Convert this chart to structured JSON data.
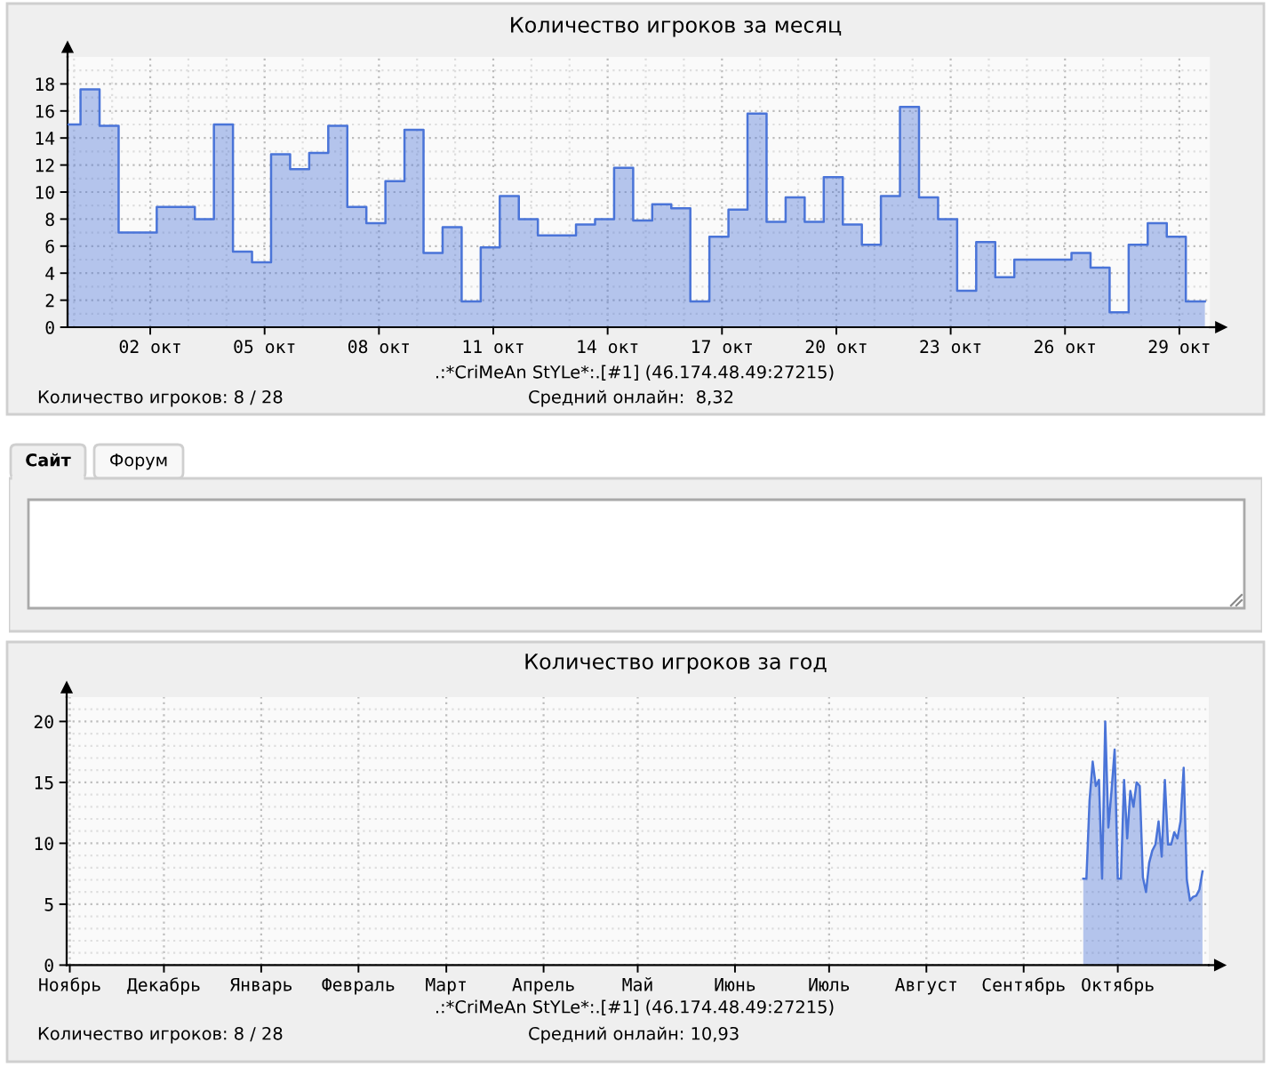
{
  "chart_data": [
    {
      "type": "area",
      "title": "Количество игроков за месяц",
      "x": [
        -0.17,
        0.17,
        0.17,
        0.67,
        0.67,
        1.17,
        1.17,
        2.17,
        2.17,
        3.17,
        3.17,
        3.67,
        3.67,
        4.17,
        4.17,
        4.67,
        4.67,
        5.17,
        5.17,
        5.67,
        5.67,
        6.17,
        6.17,
        6.67,
        6.67,
        7.17,
        7.17,
        7.67,
        7.67,
        8.17,
        8.17,
        8.67,
        8.67,
        9.17,
        9.17,
        9.67,
        9.67,
        10.17,
        10.17,
        10.67,
        10.67,
        11.17,
        11.17,
        11.67,
        11.67,
        12.17,
        12.17,
        13.17,
        13.17,
        13.67,
        13.67,
        14.17,
        14.17,
        14.67,
        14.67,
        15.17,
        15.17,
        15.67,
        15.67,
        16.17,
        16.17,
        16.67,
        16.67,
        17.17,
        17.17,
        17.67,
        17.67,
        18.17,
        18.17,
        18.67,
        18.67,
        19.17,
        19.17,
        19.67,
        19.67,
        20.17,
        20.17,
        20.67,
        20.67,
        21.17,
        21.17,
        21.67,
        21.67,
        22.17,
        22.17,
        22.67,
        22.67,
        23.17,
        23.17,
        23.67,
        23.67,
        24.17,
        24.17,
        24.67,
        24.67,
        26.17,
        26.17,
        26.67,
        26.67,
        27.17,
        27.17,
        27.67,
        27.67,
        28.17,
        28.17,
        28.67,
        28.67,
        29.17,
        29.17,
        29.67
      ],
      "series": [
        {
          "color": "#4a74d8",
          "values": [
            15.0,
            15.0,
            17.6,
            17.6,
            14.9,
            14.9,
            7.0,
            7.0,
            8.9,
            8.9,
            8.0,
            8.0,
            15.0,
            15.0,
            5.6,
            5.6,
            4.8,
            4.8,
            12.8,
            12.8,
            11.7,
            11.7,
            12.9,
            12.9,
            14.9,
            14.9,
            8.9,
            8.9,
            7.7,
            7.7,
            10.8,
            10.8,
            14.6,
            14.6,
            5.5,
            5.5,
            7.4,
            7.4,
            1.9,
            1.9,
            5.9,
            5.9,
            9.7,
            9.7,
            8.0,
            8.0,
            6.8,
            6.8,
            7.6,
            7.6,
            8.0,
            8.0,
            11.8,
            11.8,
            7.9,
            7.9,
            9.1,
            9.1,
            8.8,
            8.8,
            1.9,
            1.9,
            6.7,
            6.7,
            8.7,
            8.7,
            15.8,
            15.8,
            7.8,
            7.8,
            9.6,
            9.6,
            7.8,
            7.8,
            11.1,
            11.1,
            7.6,
            7.6,
            6.1,
            6.1,
            9.7,
            9.7,
            16.3,
            16.3,
            9.6,
            9.6,
            8.0,
            8.0,
            2.7,
            2.7,
            6.3,
            6.3,
            3.7,
            3.7,
            5.0,
            5.0,
            5.5,
            5.5,
            4.4,
            4.4,
            1.1,
            1.1,
            6.1,
            6.1,
            7.7,
            7.7,
            6.7,
            6.7,
            1.9,
            1.9
          ]
        }
      ],
      "xlim": [
        -0.17,
        29.8
      ],
      "ylim": [
        0,
        20
      ],
      "xticks": [
        {
          "value": 0,
          "label": null
        },
        {
          "value": 1,
          "label": null
        },
        {
          "value": 2,
          "label": "02 окт"
        },
        {
          "value": 3,
          "label": null
        },
        {
          "value": 4,
          "label": null
        },
        {
          "value": 5,
          "label": "05 окт"
        },
        {
          "value": 6,
          "label": null
        },
        {
          "value": 7,
          "label": null
        },
        {
          "value": 8,
          "label": "08 окт"
        },
        {
          "value": 9,
          "label": null
        },
        {
          "value": 10,
          "label": null
        },
        {
          "value": 11,
          "label": "11 окт"
        },
        {
          "value": 12,
          "label": null
        },
        {
          "value": 13,
          "label": null
        },
        {
          "value": 14,
          "label": "14 окт"
        },
        {
          "value": 15,
          "label": null
        },
        {
          "value": 16,
          "label": null
        },
        {
          "value": 17,
          "label": "17 окт"
        },
        {
          "value": 18,
          "label": null
        },
        {
          "value": 19,
          "label": null
        },
        {
          "value": 20,
          "label": "20 окт"
        },
        {
          "value": 21,
          "label": null
        },
        {
          "value": 22,
          "label": null
        },
        {
          "value": 23,
          "label": "23 окт"
        },
        {
          "value": 24,
          "label": null
        },
        {
          "value": 25,
          "label": null
        },
        {
          "value": 26,
          "label": "26 окт"
        },
        {
          "value": 27,
          "label": null
        },
        {
          "value": 28,
          "label": null
        },
        {
          "value": 29,
          "label": "29 окт"
        }
      ],
      "yticks": [
        0,
        {
          "value": 1,
          "label": null
        },
        2,
        {
          "value": 3,
          "label": null
        },
        4,
        {
          "value": 5,
          "label": null
        },
        6,
        {
          "value": 7,
          "label": null
        },
        8,
        {
          "value": 9,
          "label": null
        },
        10,
        {
          "value": 11,
          "label": null
        },
        12,
        {
          "value": 13,
          "label": null
        },
        14,
        {
          "value": 15,
          "label": null
        },
        16,
        {
          "value": 17,
          "label": null
        },
        18,
        {
          "value": 19,
          "label": null
        }
      ],
      "grid": true,
      "annotations": [
        ".:*CriMeAn StYLe*:.[#1] (46.174.48.49:27215)",
        "Количество игроков: 8 / 28",
        "Средний онлайн:  8,32"
      ]
    },
    {
      "type": "other",
      "annotations": [
        "Сайт",
        "Форум"
      ]
    },
    {
      "type": "area",
      "title": "Количество игроков за год",
      "categories": [
        null,
        "Ноябрь",
        null,
        null,
        null,
        null,
        null,
        null,
        null,
        null,
        null,
        null,
        null,
        null,
        null,
        null,
        null,
        null,
        null,
        null,
        null,
        null,
        null,
        null,
        null,
        null,
        null,
        null,
        null,
        null,
        null,
        "Декабрь",
        null,
        null,
        null,
        null,
        null,
        null,
        null,
        null,
        null,
        null,
        null,
        null,
        null,
        null,
        null,
        null,
        null,
        null,
        null,
        null,
        null,
        null,
        null,
        null,
        null,
        null,
        null,
        null,
        null,
        null,
        "Январь",
        null,
        null,
        null,
        null,
        null,
        null,
        null,
        null,
        null,
        null,
        null,
        null,
        null,
        null,
        null,
        null,
        null,
        null,
        null,
        null,
        null,
        null,
        null,
        null,
        null,
        null,
        null,
        null,
        null,
        null,
        "Февраль",
        null,
        null,
        null,
        null,
        null,
        null,
        null,
        null,
        null,
        null,
        null,
        null,
        null,
        null,
        null,
        null,
        null,
        null,
        null,
        null,
        null,
        null,
        null,
        null,
        null,
        null,
        null,
        "Март",
        null,
        null,
        null,
        null,
        null,
        null,
        null,
        null,
        null,
        null,
        null,
        null,
        null,
        null,
        null,
        null,
        null,
        null,
        null,
        null,
        null,
        null,
        null,
        null,
        null,
        null,
        null,
        null,
        null,
        null,
        "Апрель",
        null,
        null,
        null,
        null,
        null,
        null,
        null,
        null,
        null,
        null,
        null,
        null,
        null,
        null,
        null,
        null,
        null,
        null,
        null,
        null,
        null,
        null,
        null,
        null,
        null,
        null,
        null,
        null,
        null,
        "Май",
        null,
        null,
        null,
        null,
        null,
        null,
        null,
        null,
        null,
        null,
        null,
        null,
        null,
        null,
        null,
        null,
        null,
        null,
        null,
        null,
        null,
        null,
        null,
        null,
        null,
        null,
        null,
        null,
        null,
        null,
        "Июнь",
        null,
        null,
        null,
        null,
        null,
        null,
        null,
        null,
        null,
        null,
        null,
        null,
        null,
        null,
        null,
        null,
        null,
        null,
        null,
        null,
        null,
        null,
        null,
        null,
        null,
        null,
        null,
        null,
        null,
        "Июль",
        null,
        null,
        null,
        null,
        null,
        null,
        null,
        null,
        null,
        null,
        null,
        null,
        null,
        null,
        null,
        null,
        null,
        null,
        null,
        null,
        null,
        null,
        null,
        null,
        null,
        null,
        null,
        null,
        null,
        null,
        "Август",
        null,
        null,
        null,
        null,
        null,
        null,
        null,
        null,
        null,
        null,
        null,
        null,
        null,
        null,
        null,
        null,
        null,
        null,
        null,
        null,
        null,
        null,
        null,
        null,
        null,
        null,
        null,
        null,
        null,
        null,
        "Сентябрь",
        null,
        null,
        null,
        null,
        null,
        null,
        null,
        null,
        null,
        null,
        null,
        null,
        null,
        null,
        null,
        null,
        null,
        null,
        null,
        null,
        null,
        null,
        null,
        null,
        null,
        null,
        null,
        null,
        null,
        "Октябрь",
        null,
        null,
        null,
        null,
        null,
        null,
        null,
        null,
        null,
        null,
        null,
        null,
        null,
        null,
        null,
        null,
        null,
        null,
        null,
        null,
        null,
        null,
        null,
        null,
        null,
        null,
        null,
        null,
        null
      ],
      "series": [
        {
          "color": "#4a74d8",
          "values": [
            null,
            null,
            null,
            null,
            null,
            null,
            null,
            null,
            null,
            null,
            null,
            null,
            null,
            null,
            null,
            null,
            null,
            null,
            null,
            null,
            null,
            null,
            null,
            null,
            null,
            null,
            null,
            null,
            null,
            null,
            null,
            null,
            null,
            null,
            null,
            null,
            null,
            null,
            null,
            null,
            null,
            null,
            null,
            null,
            null,
            null,
            null,
            null,
            null,
            null,
            null,
            null,
            null,
            null,
            null,
            null,
            null,
            null,
            null,
            null,
            null,
            null,
            null,
            null,
            null,
            null,
            null,
            null,
            null,
            null,
            null,
            null,
            null,
            null,
            null,
            null,
            null,
            null,
            null,
            null,
            null,
            null,
            null,
            null,
            null,
            null,
            null,
            null,
            null,
            null,
            null,
            null,
            null,
            null,
            null,
            null,
            null,
            null,
            null,
            null,
            null,
            null,
            null,
            null,
            null,
            null,
            null,
            null,
            null,
            null,
            null,
            null,
            null,
            null,
            null,
            null,
            null,
            null,
            null,
            null,
            null,
            null,
            null,
            null,
            null,
            null,
            null,
            null,
            null,
            null,
            null,
            null,
            null,
            null,
            null,
            null,
            null,
            null,
            null,
            null,
            null,
            null,
            null,
            null,
            null,
            null,
            null,
            null,
            null,
            null,
            null,
            null,
            null,
            null,
            null,
            null,
            null,
            null,
            null,
            null,
            null,
            null,
            null,
            null,
            null,
            null,
            null,
            null,
            null,
            null,
            null,
            null,
            null,
            null,
            null,
            null,
            null,
            null,
            null,
            null,
            null,
            null,
            null,
            null,
            null,
            null,
            null,
            null,
            null,
            null,
            null,
            null,
            null,
            null,
            null,
            null,
            null,
            null,
            null,
            null,
            null,
            null,
            null,
            null,
            null,
            null,
            null,
            null,
            null,
            null,
            null,
            null,
            null,
            null,
            null,
            null,
            null,
            null,
            null,
            null,
            null,
            null,
            null,
            null,
            null,
            null,
            null,
            null,
            null,
            null,
            null,
            null,
            null,
            null,
            null,
            null,
            null,
            null,
            null,
            null,
            null,
            null,
            null,
            null,
            null,
            null,
            null,
            null,
            null,
            null,
            null,
            null,
            null,
            null,
            null,
            null,
            null,
            null,
            null,
            null,
            null,
            null,
            null,
            null,
            null,
            null,
            null,
            null,
            null,
            null,
            null,
            null,
            null,
            null,
            null,
            null,
            null,
            null,
            null,
            null,
            null,
            null,
            null,
            null,
            null,
            null,
            null,
            null,
            null,
            null,
            null,
            null,
            null,
            null,
            null,
            null,
            null,
            null,
            null,
            null,
            null,
            null,
            null,
            null,
            null,
            null,
            null,
            null,
            null,
            null,
            null,
            null,
            null,
            null,
            null,
            null,
            null,
            null,
            null,
            null,
            null,
            null,
            null,
            null,
            7.1,
            7.1,
            13.5,
            16.7,
            14.7,
            15.2,
            7.1,
            20.0,
            11.3,
            14.3,
            17.7,
            7.1,
            7.1,
            15.2,
            10.4,
            14.3,
            13.0,
            15.0,
            14.7,
            7.2,
            6.0,
            8.4,
            9.4,
            9.9,
            11.8,
            8.9,
            15.2,
            9.9,
            9.9,
            10.9,
            10.4,
            11.8,
            16.2,
            7.0,
            5.3,
            5.6,
            5.7,
            6.2,
            7.7,
            null,
            null
          ]
        }
      ],
      "ylim": [
        0,
        22
      ],
      "yticks": [
        0,
        {
          "value": 1,
          "label": null
        },
        {
          "value": 2,
          "label": null
        },
        {
          "value": 3,
          "label": null
        },
        {
          "value": 4,
          "label": null
        },
        5,
        {
          "value": 6,
          "label": null
        },
        {
          "value": 7,
          "label": null
        },
        {
          "value": 8,
          "label": null
        },
        {
          "value": 9,
          "label": null
        },
        10,
        {
          "value": 11,
          "label": null
        },
        {
          "value": 12,
          "label": null
        },
        {
          "value": 13,
          "label": null
        },
        {
          "value": 14,
          "label": null
        },
        15,
        {
          "value": 16,
          "label": null
        },
        {
          "value": 17,
          "label": null
        },
        {
          "value": 18,
          "label": null
        },
        {
          "value": 19,
          "label": null
        },
        20,
        {
          "value": 21,
          "label": null
        }
      ],
      "grid": true,
      "annotations": [
        ".:*CriMeAn StYLe*:.[#1] (46.174.48.49:27215)",
        "Количество игроков: 8 / 28",
        "Средний онлайн: 10,93"
      ]
    }
  ]
}
